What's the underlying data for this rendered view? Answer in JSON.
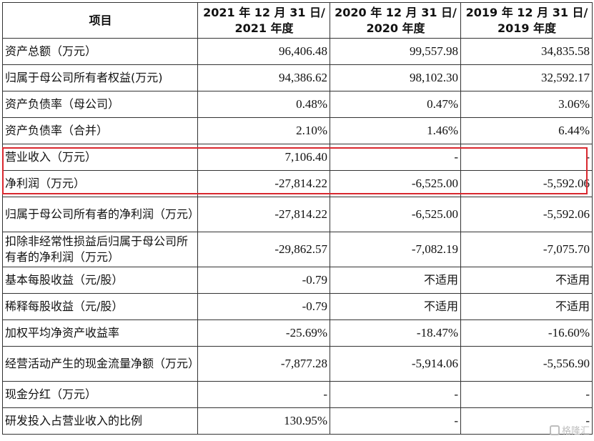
{
  "table": {
    "header": {
      "item": "项目",
      "col1_line1": "2021 年 12 月 31 日/",
      "col1_line2": "2021 年度",
      "col2_line1": "2020 年 12 月 31 日/",
      "col2_line2": "2020 年度",
      "col3_line1": "2019 年 12 月 31 日/",
      "col3_line2": "2019 年度"
    },
    "rows": [
      {
        "label": "资产总额（万元）",
        "v2021": "96,406.48",
        "v2020": "99,557.98",
        "v2019": "34,835.58"
      },
      {
        "label": "归属于母公司所有者权益(万元)",
        "v2021": "94,386.62",
        "v2020": "98,102.30",
        "v2019": "32,592.17"
      },
      {
        "label": "资产负债率（母公司）",
        "v2021": "0.48%",
        "v2020": "0.47%",
        "v2019": "3.06%"
      },
      {
        "label": "资产负债率（合并）",
        "v2021": "2.10%",
        "v2020": "1.46%",
        "v2019": "6.44%"
      },
      {
        "label": "营业收入（万元）",
        "v2021": "7,106.40",
        "v2020": "-",
        "v2019": "-"
      },
      {
        "label": "净利润（万元）",
        "v2021": "-27,814.22",
        "v2020": "-6,525.00",
        "v2019": "-5,592.06"
      },
      {
        "label": "归属于母公司所有者的净利润（万元）",
        "v2021": "-27,814.22",
        "v2020": "-6,525.00",
        "v2019": "-5,592.06"
      },
      {
        "label": "扣除非经常性损益后归属于母公司所有者的净利润（万元）",
        "v2021": "-29,862.57",
        "v2020": "-7,082.19",
        "v2019": "-7,075.70"
      },
      {
        "label": "基本每股收益（元/股）",
        "v2021": "-0.79",
        "v2020": "不适用",
        "v2019": "不适用"
      },
      {
        "label": "稀释每股收益（元/股）",
        "v2021": "-0.79",
        "v2020": "不适用",
        "v2019": "不适用"
      },
      {
        "label": "加权平均净资产收益率",
        "v2021": "-25.69%",
        "v2020": "-18.47%",
        "v2019": "-16.60%"
      },
      {
        "label": "经营活动产生的现金流量净额（万元）",
        "v2021": "-7,877.28",
        "v2020": "-5,914.06",
        "v2019": "-5,556.90"
      },
      {
        "label": "现金分红（万元）",
        "v2021": "-",
        "v2020": "-",
        "v2019": "-"
      },
      {
        "label": "研发投入占营业收入的比例",
        "v2021": "130.95%",
        "v2020": "-",
        "v2019": "-"
      }
    ]
  },
  "highlight": {
    "color": "#d9282f"
  },
  "watermark": {
    "text": "格隆汇"
  }
}
